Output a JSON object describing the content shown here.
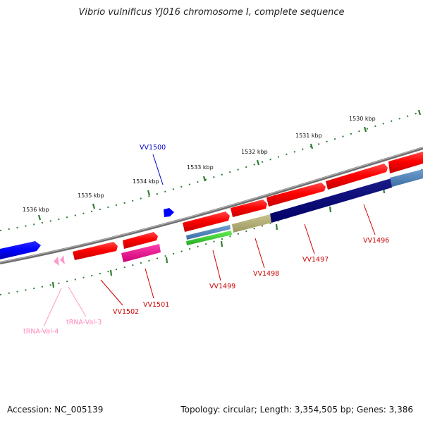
{
  "header": {
    "title": "Vibrio vulnificus YJ016 chromosome I, complete sequence"
  },
  "footer": {
    "accession": "Accession: NC_005139",
    "summary": "Topology: circular; Length: 3,354,505 bp; Genes: 3,386"
  },
  "colors": {
    "backbone": "#808080",
    "ruler": "#2e7d32",
    "gene_label": "#cc0000",
    "trna": "#ff99cc",
    "highlight": "#0000cc"
  },
  "ruler": {
    "ticks": [
      {
        "label": "1530 kbp"
      },
      {
        "label": "1531 kbp"
      },
      {
        "label": "1532 kbp"
      },
      {
        "label": "1533 kbp"
      },
      {
        "label": "1534 kbp"
      },
      {
        "label": "1535 kbp"
      },
      {
        "label": "1536 kbp"
      }
    ]
  },
  "features": {
    "labels": [
      {
        "name": "VV1500",
        "color": "#0000cc"
      },
      {
        "name": "VV1496",
        "color": "#cc0000"
      },
      {
        "name": "VV1497",
        "color": "#cc0000"
      },
      {
        "name": "VV1498",
        "color": "#cc0000"
      },
      {
        "name": "VV1499",
        "color": "#cc0000"
      },
      {
        "name": "VV1501",
        "color": "#cc0000"
      },
      {
        "name": "VV1502",
        "color": "#cc0000"
      },
      {
        "name": "tRNA-Val-3",
        "color": "#ff88bb"
      },
      {
        "name": "tRNA-Val-4",
        "color": "#ff88bb"
      }
    ]
  }
}
